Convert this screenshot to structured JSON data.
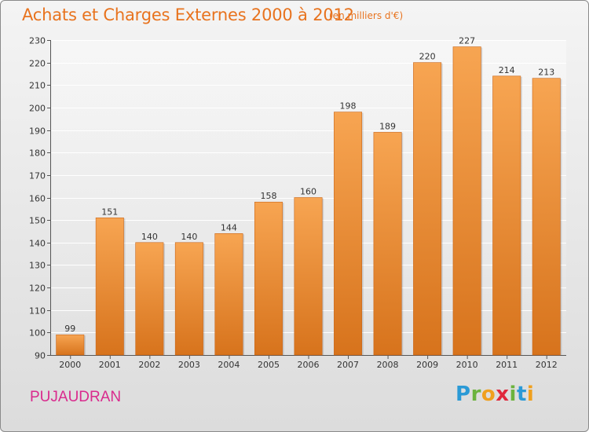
{
  "chart_data": {
    "type": "bar",
    "title": "Achats et Charges Externes 2000 à 2012",
    "subtitle": "(en milliers d'€)",
    "categories": [
      "2000",
      "2001",
      "2002",
      "2003",
      "2004",
      "2005",
      "2006",
      "2007",
      "2008",
      "2009",
      "2010",
      "2011",
      "2012"
    ],
    "values": [
      99,
      151,
      140,
      140,
      144,
      158,
      160,
      198,
      189,
      220,
      227,
      214,
      213
    ],
    "ylim": [
      90,
      230
    ],
    "yticks": [
      90,
      100,
      110,
      120,
      130,
      140,
      150,
      160,
      170,
      180,
      190,
      200,
      210,
      220,
      230
    ],
    "grid": true,
    "legend": "none",
    "bar_color_top": "#f7a552",
    "bar_color_bottom": "#d7731c"
  },
  "footer": {
    "commune": "PUJAUDRAN",
    "logo_text": "Proxiti",
    "logo_letters": [
      {
        "ch": "P",
        "color": "#2b9ad6"
      },
      {
        "ch": "r",
        "color": "#6cb33e"
      },
      {
        "ch": "o",
        "color": "#f0a01e"
      },
      {
        "ch": "x",
        "color": "#e0283c"
      },
      {
        "ch": "i",
        "color": "#6cb33e"
      },
      {
        "ch": "t",
        "color": "#2b9ad6"
      },
      {
        "ch": "i",
        "color": "#f0a01e"
      }
    ]
  }
}
